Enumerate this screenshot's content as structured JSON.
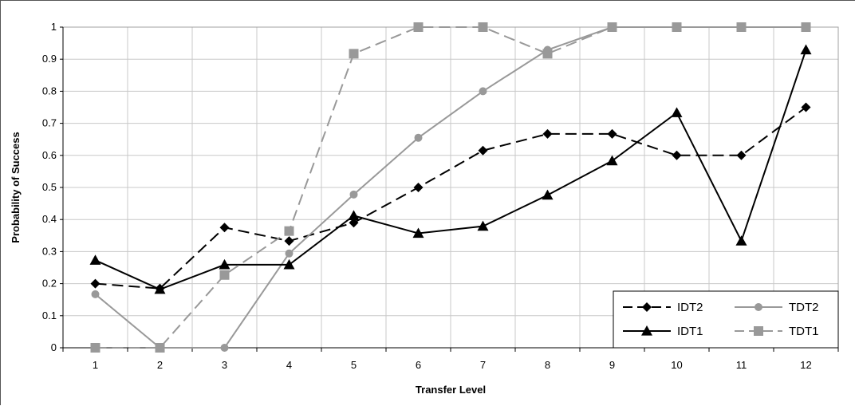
{
  "chart_data": {
    "type": "line",
    "title": "",
    "xlabel": "Transfer Level",
    "ylabel": "Probability of Success",
    "categories": [
      "1",
      "2",
      "3",
      "4",
      "5",
      "6",
      "7",
      "8",
      "9",
      "10",
      "11",
      "12"
    ],
    "ylim": [
      0,
      1
    ],
    "yticks": [
      "0",
      "0.1",
      "0.2",
      "0.3",
      "0.4",
      "0.5",
      "0.6",
      "0.7",
      "0.8",
      "0.9",
      "1"
    ],
    "grid": true,
    "legend_position": "bottom-right",
    "series": [
      {
        "name": "IDT2",
        "color": "#000000",
        "dash": "dashed",
        "marker": "diamond",
        "values": [
          0.2,
          0.185,
          0.375,
          0.333,
          0.39,
          0.5,
          0.615,
          0.667,
          0.667,
          0.6,
          0.6,
          0.75
        ]
      },
      {
        "name": "TDT2",
        "color": "#999999",
        "dash": "solid",
        "marker": "circle",
        "values": [
          0.167,
          0.0,
          0.0,
          0.294,
          0.478,
          0.655,
          0.8,
          0.929,
          1.0,
          1.0,
          1.0,
          1.0
        ]
      },
      {
        "name": "IDT1",
        "color": "#000000",
        "dash": "solid",
        "marker": "triangle",
        "values": [
          0.273,
          0.182,
          0.259,
          0.259,
          0.412,
          0.357,
          0.379,
          0.476,
          0.583,
          0.733,
          0.333,
          0.929
        ]
      },
      {
        "name": "TDT1",
        "color": "#999999",
        "dash": "dashed",
        "marker": "square",
        "values": [
          0.0,
          0.0,
          0.227,
          0.364,
          0.917,
          1.0,
          1.0,
          0.917,
          1.0,
          1.0,
          1.0,
          1.0
        ]
      }
    ]
  }
}
